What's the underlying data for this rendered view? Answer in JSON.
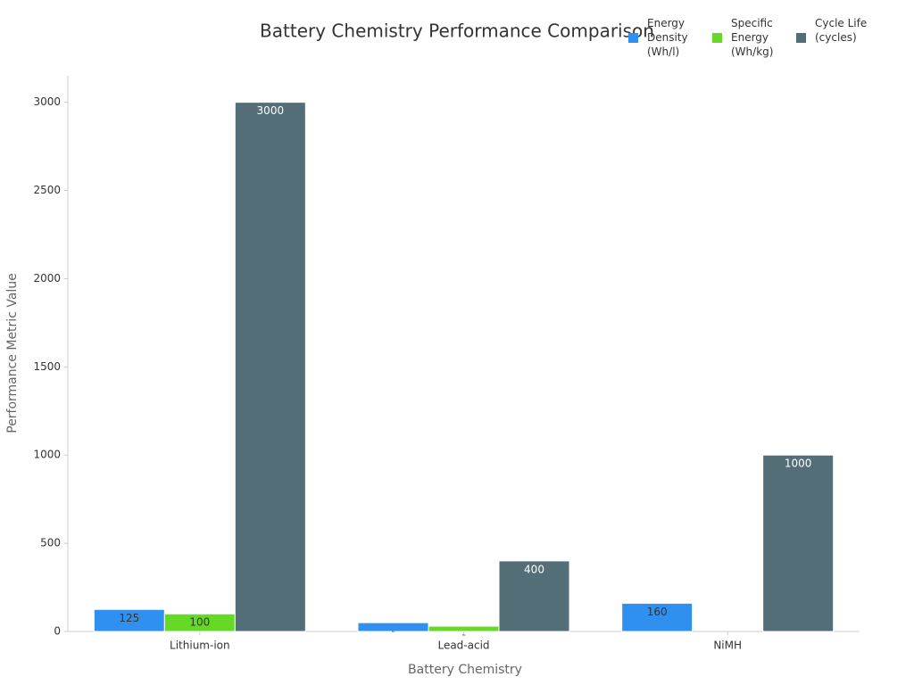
{
  "chart_data": {
    "type": "bar",
    "title": "Battery Chemistry Performance Comparison",
    "x_label": "Battery Chemistry",
    "y_label": "Performance Metric Value",
    "categories": [
      "Lithium-ion",
      "Lead-acid",
      "NiMH"
    ],
    "series": [
      {
        "name": "Energy Density (Wh/l)",
        "color": "#3090f0",
        "values": [
          125,
          50,
          160
        ]
      },
      {
        "name": "Specific Energy (Wh/kg)",
        "color": "#66d926",
        "values": [
          100,
          30,
          null
        ]
      },
      {
        "name": "Cycle Life (cycles)",
        "color": "#546e78",
        "values": [
          3000,
          400,
          1000
        ]
      }
    ],
    "ylim": [
      0,
      3150
    ],
    "yticks": [
      0,
      500,
      1000,
      1500,
      2000,
      2500,
      3000
    ],
    "grid": false
  }
}
